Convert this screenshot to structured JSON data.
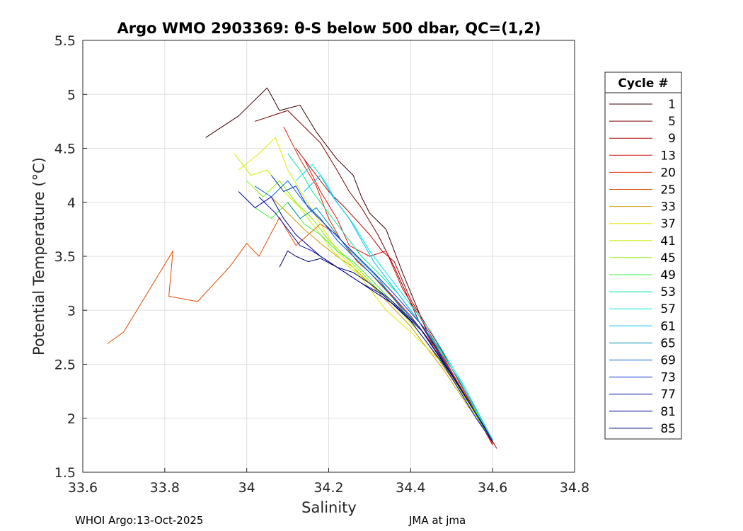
{
  "chart_data": {
    "type": "line",
    "title": "Argo WMO 2903369: θ-S below 500 dbar,  QC=(1,2)",
    "xlabel": "Salinity",
    "ylabel": "Potential Temperature (°C)",
    "xlim": [
      33.6,
      34.8
    ],
    "ylim": [
      1.5,
      5.5
    ],
    "xticks": [
      33.6,
      33.8,
      34.0,
      34.2,
      34.4,
      34.6,
      34.8
    ],
    "xtick_labels": [
      "33.6",
      "33.8",
      "34",
      "34.2",
      "34.4",
      "34.6",
      "34.8"
    ],
    "yticks": [
      1.5,
      2.0,
      2.5,
      3.0,
      3.5,
      4.0,
      4.5,
      5.0,
      5.5
    ],
    "ytick_labels": [
      "1.5",
      "2",
      "2.5",
      "3",
      "3.5",
      "4",
      "4.5",
      "5",
      "5.5"
    ],
    "grid": true,
    "legend_title": "Cycle #",
    "legend_position": "outside-right",
    "series": [
      {
        "name": "1",
        "color": "#3a0000",
        "points": [
          [
            33.9,
            4.6
          ],
          [
            33.98,
            4.8
          ],
          [
            34.05,
            5.06
          ],
          [
            34.08,
            4.85
          ],
          [
            34.13,
            4.9
          ],
          [
            34.17,
            4.65
          ],
          [
            34.22,
            4.4
          ],
          [
            34.26,
            4.25
          ],
          [
            34.28,
            4.05
          ],
          [
            34.3,
            3.9
          ],
          [
            34.34,
            3.75
          ],
          [
            34.38,
            3.35
          ],
          [
            34.44,
            2.8
          ],
          [
            34.52,
            2.3
          ],
          [
            34.58,
            1.9
          ],
          [
            34.6,
            1.78
          ]
        ]
      },
      {
        "name": "5",
        "color": "#7a0000",
        "points": [
          [
            34.02,
            4.75
          ],
          [
            34.1,
            4.85
          ],
          [
            34.14,
            4.7
          ],
          [
            34.18,
            4.55
          ],
          [
            34.22,
            4.3
          ],
          [
            34.25,
            4.1
          ],
          [
            34.28,
            3.95
          ],
          [
            34.32,
            3.7
          ],
          [
            34.36,
            3.4
          ],
          [
            34.42,
            2.9
          ],
          [
            34.5,
            2.4
          ],
          [
            34.58,
            1.92
          ],
          [
            34.6,
            1.77
          ]
        ]
      },
      {
        "name": "9",
        "color": "#b00000",
        "points": [
          [
            34.12,
            4.5
          ],
          [
            34.16,
            4.3
          ],
          [
            34.2,
            4.1
          ],
          [
            34.24,
            3.95
          ],
          [
            34.3,
            3.7
          ],
          [
            34.33,
            3.55
          ],
          [
            34.36,
            3.45
          ],
          [
            34.4,
            3.1
          ],
          [
            34.48,
            2.6
          ],
          [
            34.56,
            2.05
          ],
          [
            34.61,
            1.72
          ]
        ]
      },
      {
        "name": "13",
        "color": "#d81010",
        "points": [
          [
            34.14,
            4.4
          ],
          [
            34.18,
            4.1
          ],
          [
            34.22,
            3.85
          ],
          [
            34.25,
            3.6
          ],
          [
            34.3,
            3.5
          ],
          [
            34.34,
            3.55
          ],
          [
            34.38,
            3.2
          ],
          [
            34.46,
            2.7
          ],
          [
            34.55,
            2.1
          ],
          [
            34.6,
            1.75
          ]
        ]
      },
      {
        "name": "20",
        "color": "#e02a00",
        "points": [
          [
            34.09,
            4.7
          ],
          [
            34.13,
            4.4
          ],
          [
            34.17,
            4.15
          ],
          [
            34.2,
            3.85
          ],
          [
            34.23,
            3.65
          ],
          [
            34.27,
            3.45
          ],
          [
            34.3,
            3.35
          ],
          [
            34.34,
            3.2
          ],
          [
            34.4,
            2.95
          ],
          [
            34.48,
            2.55
          ],
          [
            34.56,
            2.05
          ],
          [
            34.6,
            1.76
          ]
        ]
      },
      {
        "name": "25",
        "color": "#e04e00",
        "points": [
          [
            33.66,
            2.69
          ],
          [
            33.7,
            2.8
          ],
          [
            33.82,
            3.55
          ],
          [
            33.81,
            3.13
          ],
          [
            33.88,
            3.08
          ],
          [
            33.96,
            3.41
          ],
          [
            34.0,
            3.62
          ],
          [
            34.03,
            3.5
          ],
          [
            34.08,
            3.86
          ],
          [
            34.12,
            3.6
          ],
          [
            34.18,
            3.8
          ],
          [
            34.22,
            3.7
          ],
          [
            34.26,
            3.5
          ],
          [
            34.3,
            3.35
          ],
          [
            34.36,
            3.1
          ],
          [
            34.44,
            2.7
          ],
          [
            34.54,
            2.15
          ],
          [
            34.6,
            1.77
          ]
        ]
      },
      {
        "name": "33",
        "color": "#c8a000",
        "points": [
          [
            34.06,
            4.05
          ],
          [
            34.1,
            3.9
          ],
          [
            34.14,
            3.75
          ],
          [
            34.18,
            3.62
          ],
          [
            34.22,
            3.5
          ],
          [
            34.26,
            3.4
          ],
          [
            34.3,
            3.25
          ],
          [
            34.35,
            3.05
          ],
          [
            34.4,
            2.85
          ],
          [
            34.48,
            2.45
          ],
          [
            34.56,
            2.0
          ],
          [
            34.6,
            1.78
          ]
        ]
      },
      {
        "name": "37",
        "color": "#e6e600",
        "points": [
          [
            33.98,
            4.3
          ],
          [
            34.03,
            4.45
          ],
          [
            34.07,
            4.6
          ],
          [
            34.1,
            4.3
          ],
          [
            34.14,
            4.05
          ],
          [
            34.18,
            3.8
          ],
          [
            34.22,
            3.55
          ],
          [
            34.26,
            3.4
          ],
          [
            34.3,
            3.2
          ],
          [
            34.34,
            3.0
          ],
          [
            34.4,
            2.8
          ],
          [
            34.48,
            2.5
          ],
          [
            34.56,
            2.05
          ],
          [
            34.6,
            1.78
          ]
        ]
      },
      {
        "name": "41",
        "color": "#c8f000",
        "points": [
          [
            33.97,
            4.45
          ],
          [
            34.01,
            4.25
          ],
          [
            34.05,
            4.3
          ],
          [
            34.09,
            4.1
          ],
          [
            34.13,
            3.95
          ],
          [
            34.17,
            3.75
          ],
          [
            34.21,
            3.55
          ],
          [
            34.25,
            3.4
          ],
          [
            34.3,
            3.25
          ],
          [
            34.36,
            3.05
          ],
          [
            34.42,
            2.8
          ],
          [
            34.5,
            2.4
          ],
          [
            34.58,
            1.92
          ],
          [
            34.6,
            1.78
          ]
        ]
      },
      {
        "name": "45",
        "color": "#8cf000",
        "points": [
          [
            34.0,
            4.2
          ],
          [
            34.04,
            4.05
          ],
          [
            34.08,
            4.2
          ],
          [
            34.12,
            4.0
          ],
          [
            34.16,
            3.85
          ],
          [
            34.2,
            3.65
          ],
          [
            34.24,
            3.5
          ],
          [
            34.28,
            3.35
          ],
          [
            34.33,
            3.15
          ],
          [
            34.39,
            2.95
          ],
          [
            34.46,
            2.6
          ],
          [
            34.54,
            2.15
          ],
          [
            34.6,
            1.78
          ]
        ]
      },
      {
        "name": "49",
        "color": "#40f040",
        "points": [
          [
            34.02,
            3.95
          ],
          [
            34.06,
            3.85
          ],
          [
            34.1,
            4.0
          ],
          [
            34.14,
            3.8
          ],
          [
            34.18,
            3.7
          ],
          [
            34.22,
            3.55
          ],
          [
            34.26,
            3.45
          ],
          [
            34.3,
            3.3
          ],
          [
            34.35,
            3.1
          ],
          [
            34.42,
            2.85
          ],
          [
            34.5,
            2.4
          ],
          [
            34.58,
            1.92
          ],
          [
            34.6,
            1.78
          ]
        ]
      },
      {
        "name": "53",
        "color": "#00e890",
        "points": [
          [
            34.1,
            4.45
          ],
          [
            34.13,
            4.3
          ],
          [
            34.16,
            4.1
          ],
          [
            34.2,
            3.9
          ],
          [
            34.24,
            3.7
          ],
          [
            34.28,
            3.5
          ],
          [
            34.32,
            3.35
          ],
          [
            34.37,
            3.15
          ],
          [
            34.44,
            2.8
          ],
          [
            34.52,
            2.35
          ],
          [
            34.59,
            1.85
          ]
        ]
      },
      {
        "name": "57",
        "color": "#00e8e0",
        "points": [
          [
            34.12,
            4.2
          ],
          [
            34.16,
            4.35
          ],
          [
            34.19,
            4.2
          ],
          [
            34.22,
            4.0
          ],
          [
            34.26,
            3.8
          ],
          [
            34.3,
            3.55
          ],
          [
            34.34,
            3.35
          ],
          [
            34.38,
            3.15
          ],
          [
            34.45,
            2.8
          ],
          [
            34.53,
            2.3
          ],
          [
            34.6,
            1.8
          ]
        ]
      },
      {
        "name": "61",
        "color": "#00c0f0",
        "points": [
          [
            34.14,
            4.1
          ],
          [
            34.18,
            4.25
          ],
          [
            34.21,
            4.05
          ],
          [
            34.25,
            3.85
          ],
          [
            34.28,
            3.65
          ],
          [
            34.31,
            3.45
          ],
          [
            34.35,
            3.25
          ],
          [
            34.4,
            3.0
          ],
          [
            34.47,
            2.65
          ],
          [
            34.55,
            2.15
          ],
          [
            34.6,
            1.8
          ]
        ]
      },
      {
        "name": "65",
        "color": "#0090b0",
        "points": [
          [
            34.1,
            4.0
          ],
          [
            34.13,
            3.85
          ],
          [
            34.17,
            3.95
          ],
          [
            34.2,
            3.8
          ],
          [
            34.24,
            3.6
          ],
          [
            34.28,
            3.45
          ],
          [
            34.32,
            3.3
          ],
          [
            34.36,
            3.1
          ],
          [
            34.42,
            2.85
          ],
          [
            34.5,
            2.4
          ],
          [
            34.58,
            1.92
          ],
          [
            34.6,
            1.78
          ]
        ]
      },
      {
        "name": "69",
        "color": "#0060e0",
        "points": [
          [
            34.02,
            4.15
          ],
          [
            34.06,
            4.05
          ],
          [
            34.1,
            4.2
          ],
          [
            34.14,
            4.0
          ],
          [
            34.18,
            3.85
          ],
          [
            34.22,
            3.65
          ],
          [
            34.26,
            3.5
          ],
          [
            34.3,
            3.35
          ],
          [
            34.35,
            3.15
          ],
          [
            34.42,
            2.85
          ],
          [
            34.5,
            2.4
          ],
          [
            34.58,
            1.92
          ],
          [
            34.6,
            1.78
          ]
        ]
      },
      {
        "name": "73",
        "color": "#0030d0",
        "points": [
          [
            34.06,
            4.25
          ],
          [
            34.09,
            4.1
          ],
          [
            34.12,
            4.15
          ],
          [
            34.15,
            3.95
          ],
          [
            34.19,
            3.8
          ],
          [
            34.23,
            3.65
          ],
          [
            34.27,
            3.5
          ],
          [
            34.31,
            3.35
          ],
          [
            34.36,
            3.15
          ],
          [
            34.43,
            2.85
          ],
          [
            34.51,
            2.35
          ],
          [
            34.59,
            1.85
          ]
        ]
      },
      {
        "name": "77",
        "color": "#0010b0",
        "points": [
          [
            34.03,
            4.05
          ],
          [
            34.07,
            3.9
          ],
          [
            34.1,
            3.75
          ],
          [
            34.13,
            3.6
          ],
          [
            34.16,
            3.55
          ],
          [
            34.2,
            3.45
          ],
          [
            34.24,
            3.35
          ],
          [
            34.28,
            3.25
          ],
          [
            34.33,
            3.15
          ],
          [
            34.4,
            2.9
          ],
          [
            34.48,
            2.5
          ],
          [
            34.56,
            2.0
          ],
          [
            34.6,
            1.78
          ]
        ]
      },
      {
        "name": "81",
        "color": "#000090",
        "points": [
          [
            33.98,
            4.1
          ],
          [
            34.02,
            3.95
          ],
          [
            34.06,
            4.05
          ],
          [
            34.09,
            3.85
          ],
          [
            34.12,
            3.7
          ],
          [
            34.15,
            3.6
          ],
          [
            34.18,
            3.5
          ],
          [
            34.22,
            3.4
          ],
          [
            34.26,
            3.3
          ],
          [
            34.3,
            3.2
          ],
          [
            34.36,
            3.05
          ],
          [
            34.43,
            2.8
          ],
          [
            34.51,
            2.35
          ],
          [
            34.59,
            1.85
          ]
        ]
      },
      {
        "name": "85",
        "color": "#000070",
        "points": [
          [
            34.08,
            3.4
          ],
          [
            34.1,
            3.55
          ],
          [
            34.12,
            3.5
          ],
          [
            34.15,
            3.45
          ],
          [
            34.18,
            3.48
          ],
          [
            34.22,
            3.4
          ],
          [
            34.26,
            3.35
          ],
          [
            34.3,
            3.25
          ],
          [
            34.35,
            3.1
          ],
          [
            34.42,
            2.85
          ],
          [
            34.5,
            2.4
          ],
          [
            34.58,
            1.92
          ],
          [
            34.6,
            1.78
          ]
        ]
      }
    ]
  },
  "footer": {
    "left": "WHOI Argo:13-Oct-2025",
    "right": "JMA at jma"
  }
}
